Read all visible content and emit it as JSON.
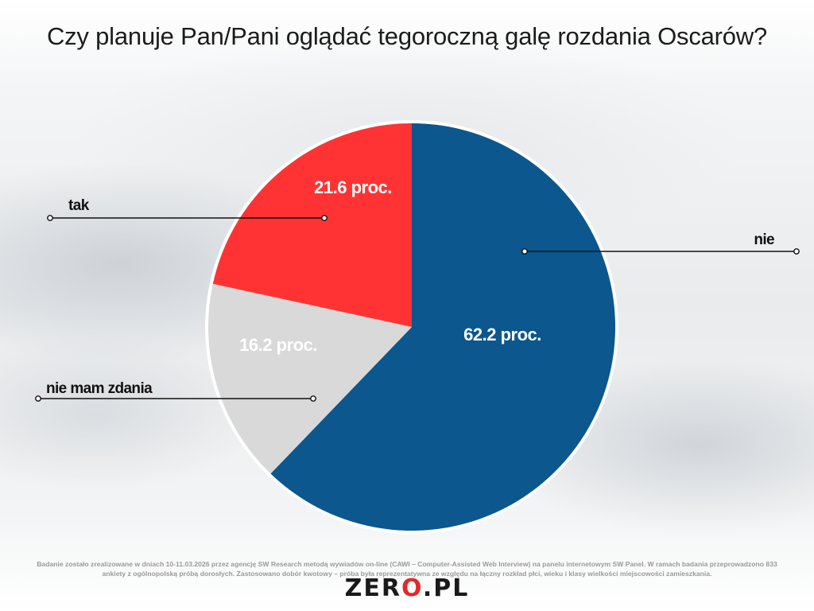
{
  "title": "Czy planuje Pan/Pani oglądać tegoroczną galę rozdania Oscarów?",
  "chart_data": {
    "type": "pie",
    "slices": [
      {
        "name": "nie",
        "value": 62.2,
        "label": "62.2 proc.",
        "color": "#0b578e"
      },
      {
        "name": "nie mam zdania",
        "value": 16.2,
        "label": "16.2 proc.",
        "color": "#d9d9d9"
      },
      {
        "name": "tak",
        "value": 21.6,
        "label": "21.6 proc.",
        "color": "#ff3333"
      }
    ]
  },
  "footnote": "Badanie zostało zrealizowane w dniach 10-11.03.2026 przez agencję SW Research metodą wywiadów on-line (CAWI – Computer-Assisted Web Interview) na panelu internetowym SW Panel. W ramach badania przeprowadzono 833 ankiety z ogólnopolską próbą dorosłych. Zastosowano dobór kwotowy – próba była reprezentatywna ze względu na łączny rozkład płci, wieku i klasy wielkości miejscowości zamieszkania.",
  "logo": {
    "left": "ZER",
    "dot": "O",
    "right": ".PL"
  }
}
